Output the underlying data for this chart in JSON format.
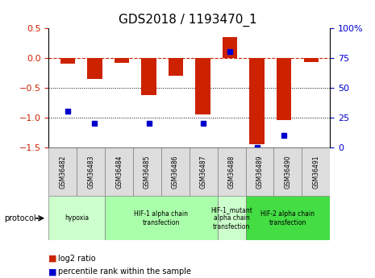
{
  "title": "GDS2018 / 1193470_1",
  "samples": [
    "GSM36482",
    "GSM36483",
    "GSM36484",
    "GSM36485",
    "GSM36486",
    "GSM36487",
    "GSM36488",
    "GSM36489",
    "GSM36490",
    "GSM36491"
  ],
  "log2_ratio": [
    -0.1,
    -0.35,
    -0.08,
    -0.63,
    -0.3,
    -0.95,
    0.35,
    -1.45,
    -1.05,
    -0.07
  ],
  "percentile_rank": [
    30,
    20,
    null,
    20,
    null,
    20,
    80,
    0,
    10,
    null
  ],
  "ylim_left": [
    -1.5,
    0.5
  ],
  "ylim_right": [
    0,
    100
  ],
  "yticks_left": [
    -1.5,
    -1.0,
    -0.5,
    0.0,
    0.5
  ],
  "yticks_right": [
    0,
    25,
    50,
    75,
    100
  ],
  "bar_color": "#cc2200",
  "dot_color": "#0000cc",
  "left_tick_color": "#cc2200",
  "right_tick_color": "#0000cc",
  "group_spans": [
    {
      "start": 0,
      "end": 2,
      "label": "hypoxia",
      "color": "#ccffcc"
    },
    {
      "start": 2,
      "end": 6,
      "label": "HIF-1 alpha chain\ntransfection",
      "color": "#aaffaa"
    },
    {
      "start": 6,
      "end": 7,
      "label": "HIF-1_mutant\nalpha chain\ntransfection",
      "color": "#ccffcc"
    },
    {
      "start": 7,
      "end": 10,
      "label": "HIF-2 alpha chain\ntransfection",
      "color": "#44dd44"
    }
  ]
}
